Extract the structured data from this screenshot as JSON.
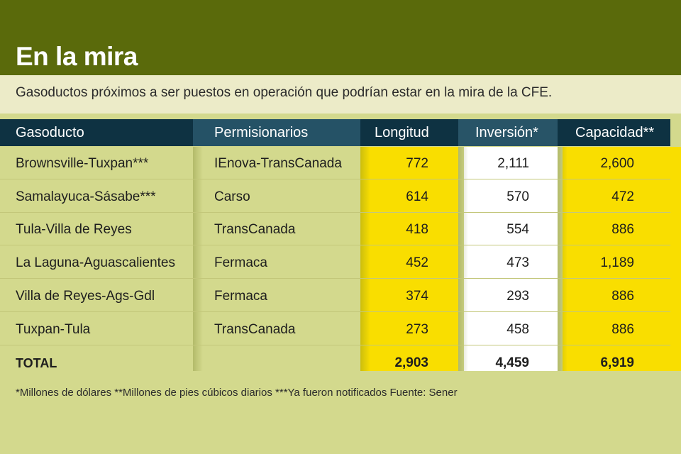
{
  "header": {
    "title": "En la mira",
    "subtitle": "Gasoductos próximos a ser puestos en operación que podrían estar en la mira de la CFE."
  },
  "colors": {
    "header_bg": "#5a6a0b",
    "table_header_bg": "#0e3242",
    "highlight_yellow": "#f9de00",
    "page_bg": "#d3d98d"
  },
  "table": {
    "columns": [
      "Gasoducto",
      "Permisionarios",
      "Longitud",
      "Inversión*",
      "Capacidad**"
    ],
    "rows": [
      [
        "Brownsville-Tuxpan***",
        "IEnova-TransCanada",
        "772",
        "2,111",
        "2,600"
      ],
      [
        "Samalayuca-Sásabe***",
        "Carso",
        "614",
        "570",
        "472"
      ],
      [
        "Tula-Villa de Reyes",
        "TransCanada",
        "418",
        "554",
        "886"
      ],
      [
        "La Laguna-Aguascalientes",
        "Fermaca",
        "452",
        "473",
        "1,189"
      ],
      [
        "Villa de Reyes-Ags-Gdl",
        "Fermaca",
        "374",
        "293",
        "886"
      ],
      [
        "Tuxpan-Tula",
        "TransCanada",
        "273",
        "458",
        "886"
      ]
    ],
    "total": [
      "TOTAL",
      "",
      "2,903",
      "4,459",
      "6,919"
    ]
  },
  "footnote": "*Millones de dólares **Millones de pies cúbicos diarios ***Ya fueron notificados Fuente: Sener"
}
